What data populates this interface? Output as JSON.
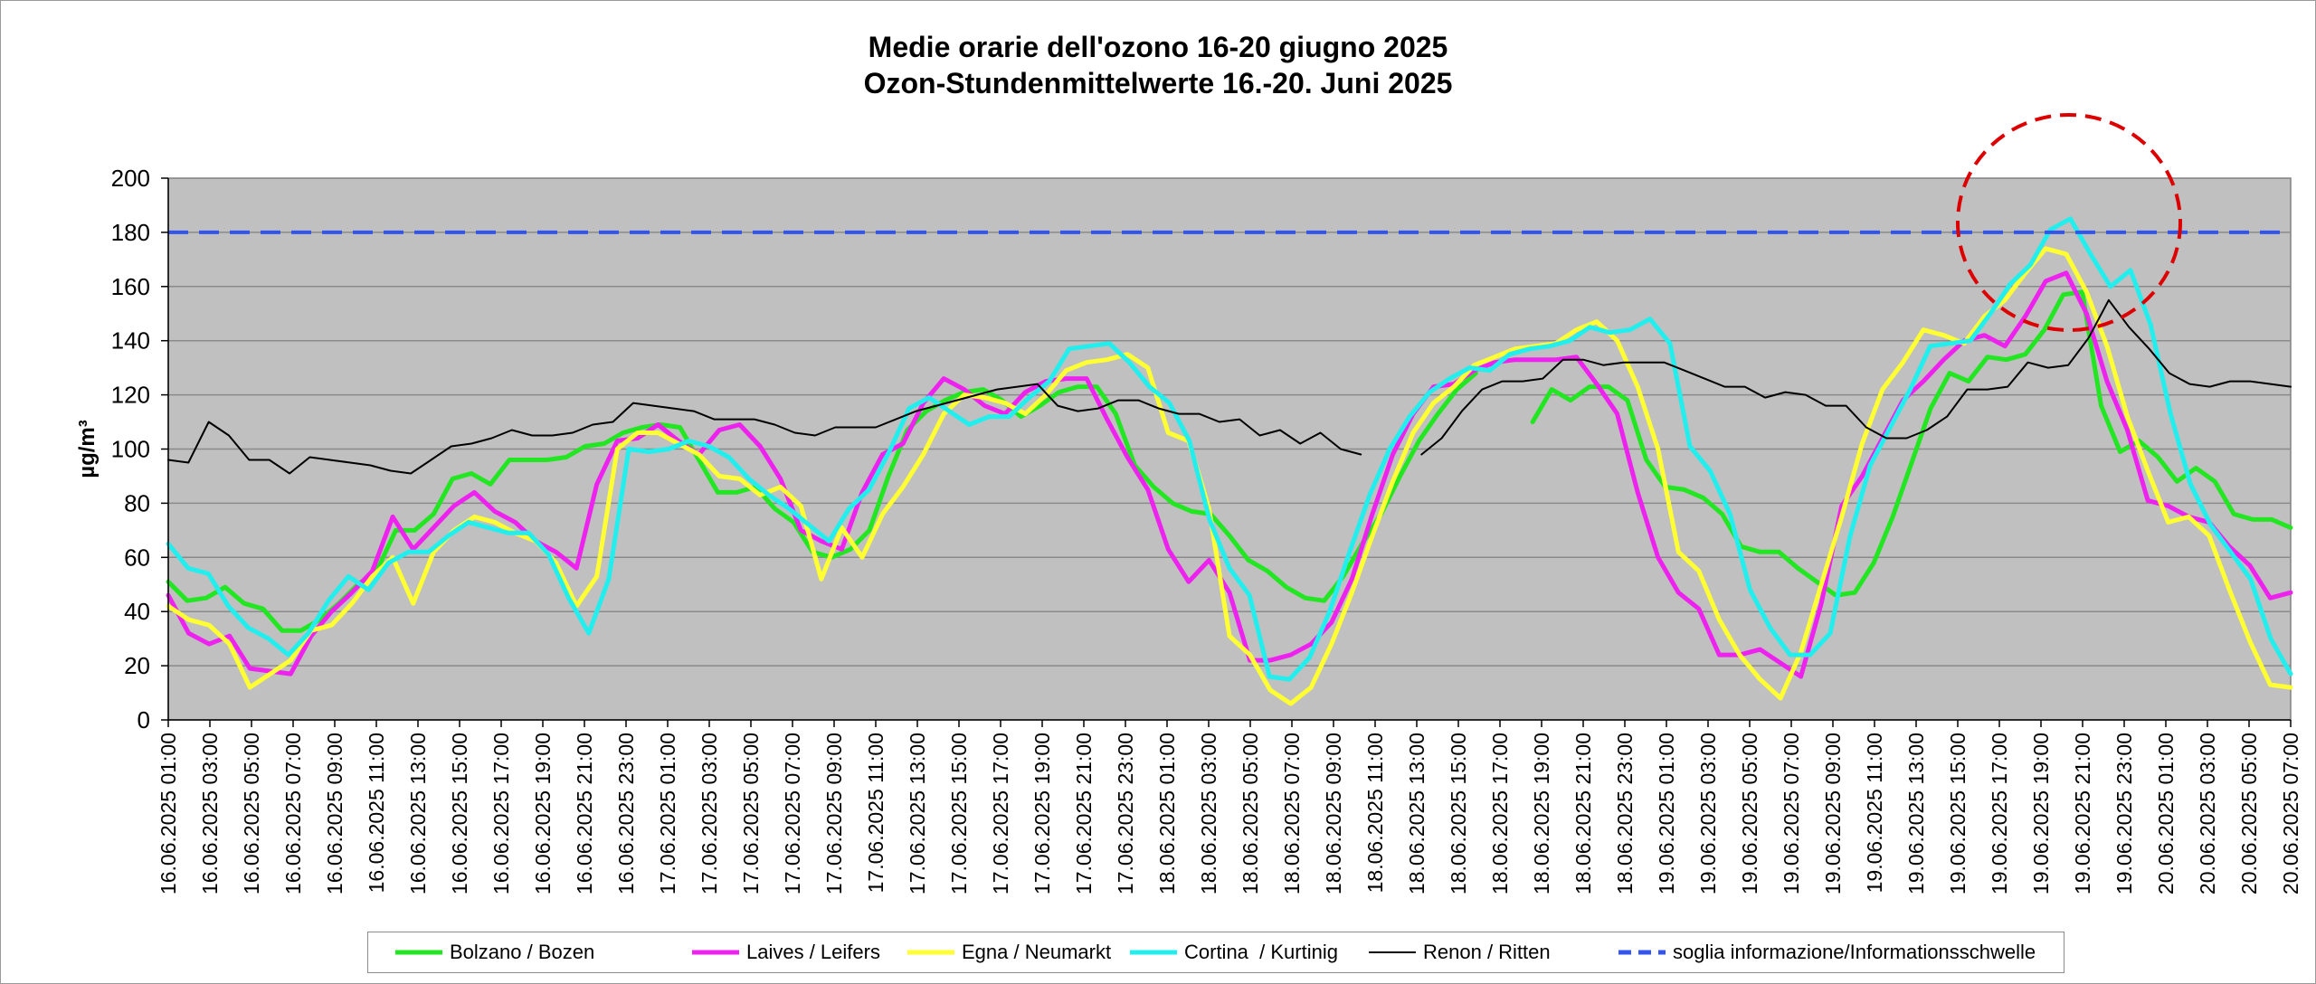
{
  "chart_data": {
    "type": "line",
    "title": [
      "Medie orarie dell'ozono 16-20 giugno 2025",
      "Ozon-Stundenmittelwerte 16.-20. Juni 2025"
    ],
    "ylabel": "µg/m³",
    "xlabel": "",
    "ylim": [
      0,
      200
    ],
    "yticks": [
      0,
      20,
      40,
      60,
      80,
      100,
      120,
      140,
      160,
      180,
      200
    ],
    "grid": true,
    "legend_position": "bottom",
    "x_start": "16.06.2025 01:00",
    "x_end": "20.06.2025 07:00",
    "x_tick_labels": [
      "16.06.2025 01:00",
      "16.06.2025 03:00",
      "16.06.2025 05:00",
      "16.06.2025 07:00",
      "16.06.2025 09:00",
      "16.06.2025 11:00",
      "16.06.2025 13:00",
      "16.06.2025 15:00",
      "16.06.2025 17:00",
      "16.06.2025 19:00",
      "16.06.2025 21:00",
      "16.06.2025 23:00",
      "17.06.2025 01:00",
      "17.06.2025 03:00",
      "17.06.2025 05:00",
      "17.06.2025 07:00",
      "17.06.2025 09:00",
      "17.06.2025 11:00",
      "17.06.2025 13:00",
      "17.06.2025 15:00",
      "17.06.2025 17:00",
      "17.06.2025 19:00",
      "17.06.2025 21:00",
      "17.06.2025 23:00",
      "18.06.2025 01:00",
      "18.06.2025 03:00",
      "18.06.2025 05:00",
      "18.06.2025 07:00",
      "18.06.2025 09:00",
      "18.06.2025 11:00",
      "18.06.2025 13:00",
      "18.06.2025 15:00",
      "18.06.2025 17:00",
      "18.06.2025 19:00",
      "18.06.2025 21:00",
      "18.06.2025 23:00",
      "19.06.2025 01:00",
      "19.06.2025 03:00",
      "19.06.2025 05:00",
      "19.06.2025 07:00",
      "19.06.2025 09:00",
      "19.06.2025 11:00",
      "19.06.2025 13:00",
      "19.06.2025 15:00",
      "19.06.2025 17:00",
      "19.06.2025 19:00",
      "19.06.2025 21:00",
      "19.06.2025 23:00",
      "20.06.2025 01:00",
      "20.06.2025 03:00",
      "20.06.2025 05:00",
      "20.06.2025 07:00"
    ],
    "series": [
      {
        "name": "Bolzano / Bozen",
        "color": "#22e622",
        "width": 5,
        "dash": "none",
        "values": [
          51,
          44,
          45,
          49,
          43,
          41,
          33,
          33,
          37,
          43,
          50,
          55,
          70,
          70,
          76,
          89,
          91,
          87,
          96,
          96,
          96,
          97,
          101,
          102,
          106,
          108,
          109,
          108,
          96,
          84,
          84,
          86,
          78,
          73,
          62,
          60,
          63,
          70,
          90,
          107,
          114,
          118,
          121,
          122,
          118,
          112,
          116,
          121,
          123,
          123,
          113,
          94,
          86,
          80,
          77,
          76,
          68,
          59,
          55,
          49,
          45,
          44,
          53,
          65,
          76,
          90,
          103,
          113,
          122,
          128,
          null,
          null,
          110,
          122,
          118,
          123,
          123,
          118,
          96,
          86,
          85,
          82,
          76,
          64,
          62,
          62,
          56,
          51,
          46,
          47,
          58,
          75,
          95,
          115,
          128,
          125,
          134,
          133,
          135,
          144,
          157,
          158,
          116,
          99,
          103,
          97,
          88,
          93,
          88,
          76,
          74,
          74,
          71
        ],
        "note": "gap during the 18.06 afternoon (no data shown)"
      },
      {
        "name": "Laives / Leifers",
        "color": "#ee22ee",
        "width": 5,
        "dash": "none",
        "values": [
          46,
          32,
          28,
          31,
          19,
          18,
          17,
          31,
          40,
          47,
          55,
          75,
          63,
          71,
          79,
          84,
          77,
          73,
          66,
          62,
          56,
          87,
          103,
          104,
          109,
          103,
          98,
          107,
          109,
          101,
          89,
          70,
          66,
          63,
          84,
          98,
          102,
          117,
          126,
          122,
          116,
          113,
          121,
          125,
          126,
          126,
          111,
          97,
          85,
          63,
          51,
          59,
          47,
          22,
          22,
          24,
          28,
          36,
          52,
          76,
          98,
          113,
          123,
          124,
          129,
          132,
          133,
          133,
          133,
          134,
          124,
          113,
          84,
          60,
          47,
          41,
          24,
          24,
          26,
          21,
          16,
          43,
          79,
          90,
          104,
          118,
          125,
          133,
          140,
          142,
          138,
          149,
          162,
          165,
          150,
          125,
          107,
          81,
          79,
          75,
          73,
          64,
          57,
          45,
          47
        ],
        "note": "plotted with slight offset from the x grid; values approximated per hour"
      },
      {
        "name": "Egna / Neumarkt",
        "color": "#ffff33",
        "width": 5,
        "dash": "none",
        "values": [
          42,
          37,
          35,
          28,
          12,
          17,
          22,
          33,
          35,
          43,
          53,
          60,
          43,
          62,
          70,
          75,
          73,
          69,
          66,
          58,
          42,
          53,
          100,
          106,
          106,
          102,
          98,
          90,
          89,
          83,
          86,
          79,
          52,
          71,
          60,
          76,
          86,
          98,
          113,
          120,
          119,
          117,
          113,
          120,
          129,
          132,
          133,
          135,
          130,
          106,
          103,
          78,
          31,
          24,
          11,
          6,
          12,
          28,
          47,
          68,
          88,
          106,
          117,
          123,
          131,
          134,
          137,
          138,
          139,
          144,
          147,
          140,
          123,
          100,
          62,
          55,
          37,
          24,
          15,
          8,
          25,
          50,
          75,
          102,
          122,
          132,
          144,
          142,
          139,
          149,
          155,
          165,
          174,
          172,
          158,
          138,
          112,
          92,
          73,
          75,
          68,
          48,
          29,
          13,
          12
        ]
      },
      {
        "name": "Cortina  / Kurtinig",
        "color": "#22eeee",
        "width": 5,
        "dash": "none",
        "values": [
          65,
          56,
          54,
          42,
          34,
          30,
          24,
          32,
          44,
          53,
          48,
          58,
          62,
          62,
          68,
          73,
          71,
          69,
          69,
          61,
          45,
          32,
          52,
          100,
          99,
          100,
          103,
          101,
          97,
          89,
          83,
          78,
          72,
          66,
          78,
          85,
          99,
          115,
          119,
          114,
          109,
          112,
          112,
          119,
          125,
          137,
          138,
          139,
          132,
          123,
          117,
          103,
          74,
          56,
          46,
          16,
          15,
          23,
          40,
          62,
          83,
          100,
          112,
          121,
          126,
          130,
          129,
          135,
          137,
          138,
          140,
          145,
          143,
          144,
          148,
          139,
          101,
          92,
          76,
          48,
          34,
          24,
          24,
          32,
          68,
          94,
          108,
          122,
          138,
          139,
          140,
          150,
          161,
          168,
          181,
          185,
          172,
          160,
          166,
          146,
          113,
          87,
          72,
          62,
          52,
          30,
          17
        ]
      },
      {
        "name": "Renon / Ritten",
        "color": "#000000",
        "width": 2,
        "dash": "none",
        "values": [
          96,
          95,
          110,
          105,
          96,
          96,
          91,
          97,
          96,
          95,
          94,
          92,
          91,
          96,
          101,
          102,
          104,
          107,
          105,
          105,
          106,
          109,
          110,
          117,
          116,
          115,
          114,
          111,
          111,
          111,
          109,
          106,
          105,
          108,
          108,
          108,
          111,
          114,
          116,
          118,
          120,
          122,
          123,
          124,
          116,
          114,
          115,
          118,
          118,
          115,
          113,
          113,
          110,
          111,
          105,
          107,
          102,
          106,
          100,
          98,
          null,
          null,
          98,
          104,
          114,
          122,
          125,
          125,
          126,
          133,
          133,
          131,
          132,
          132,
          132,
          129,
          126,
          123,
          123,
          119,
          121,
          120,
          116,
          116,
          108,
          104,
          104,
          107,
          112,
          122,
          122,
          123,
          132,
          130,
          131,
          141,
          155,
          145,
          137,
          128,
          124,
          123,
          125,
          125,
          124,
          123
        ],
        "note": "gap around 18.06 09:00"
      },
      {
        "name": "soglia informazione/Informationsschwelle",
        "color": "#3355ee",
        "width": 4,
        "dash": "22 12",
        "values": [
          180,
          180
        ],
        "note": "horizontal threshold line spanning full x range"
      }
    ],
    "annotations": [
      {
        "type": "ellipse",
        "color": "#dd0000",
        "dash": "18 10",
        "description": "red dashed circle around peak on 19.06 evening exceeding the threshold"
      }
    ]
  }
}
